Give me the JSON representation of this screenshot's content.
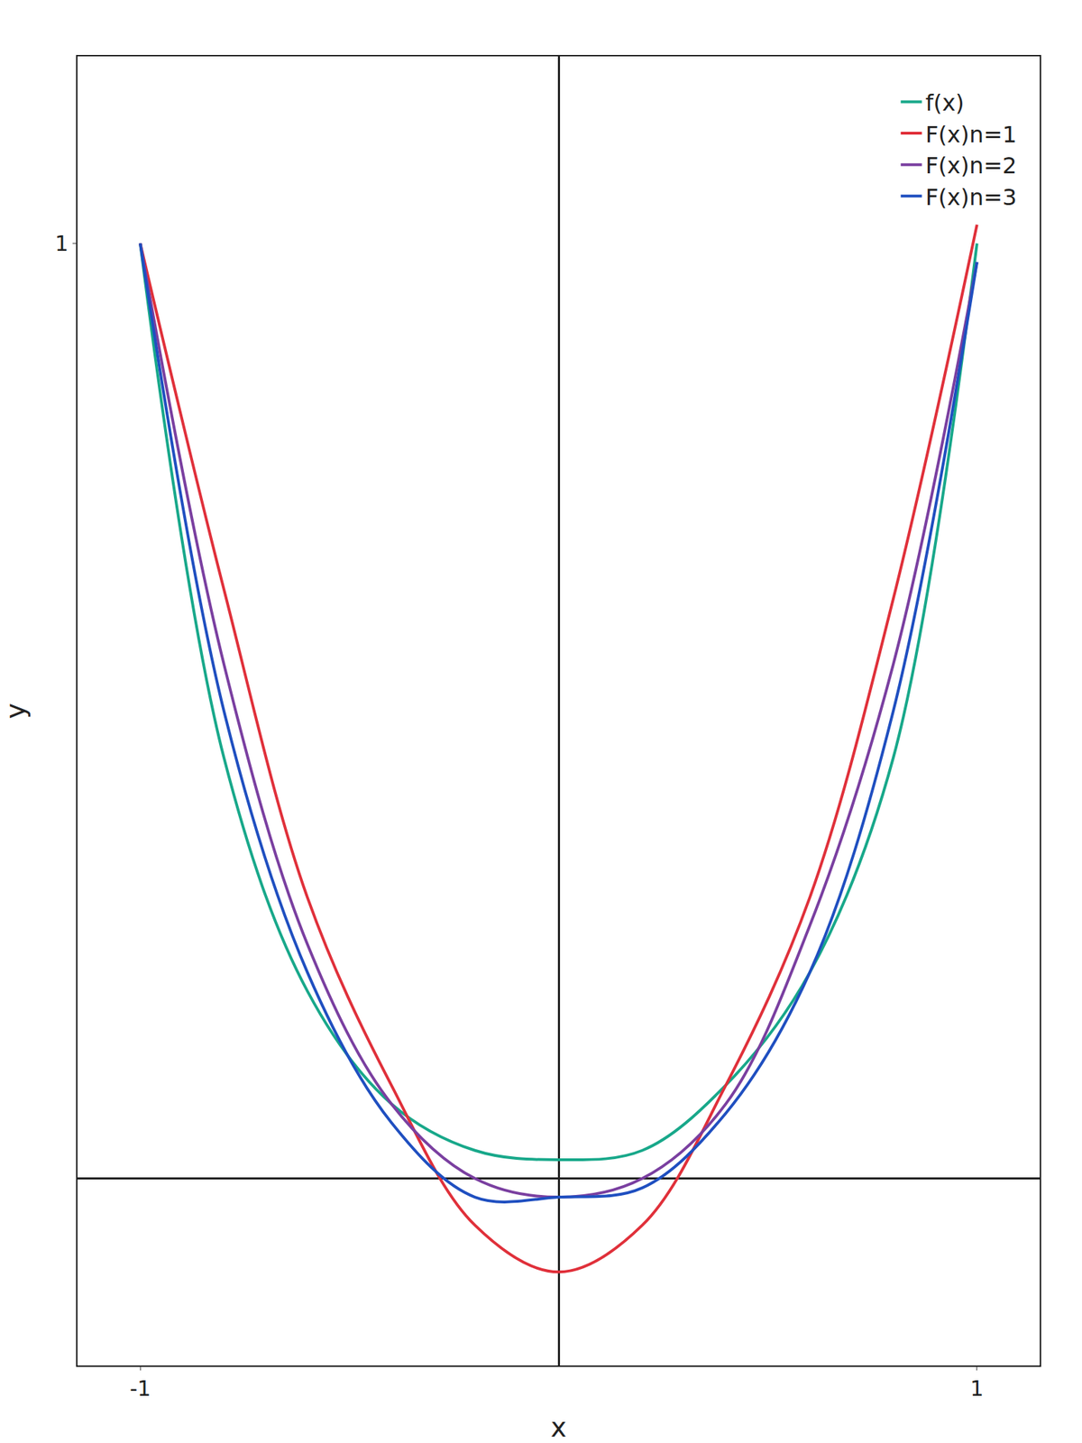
{
  "chart_data": {
    "type": "line",
    "x_label": "x",
    "y_label": "y",
    "x": [
      -1,
      -0.8,
      -0.6,
      -0.4,
      -0.2,
      0,
      0.2,
      0.4,
      0.6,
      0.8,
      1
    ],
    "series": [
      {
        "name": "f(x)",
        "color": "#18a88a",
        "values": [
          1,
          0.45,
          0.2,
          0.08,
          0.03,
          0.02,
          0.03,
          0.1,
          0.22,
          0.45,
          1
        ]
      },
      {
        "name": "F(x)n=1",
        "color": "#e0303a",
        "values": [
          1,
          0.63,
          0.3,
          0.1,
          -0.05,
          -0.1,
          -0.05,
          0.1,
          0.3,
          0.62,
          1.02
        ]
      },
      {
        "name": "F(x)n=2",
        "color": "#7a3fa0",
        "values": [
          1,
          0.55,
          0.25,
          0.08,
          0,
          -0.02,
          0,
          0.08,
          0.27,
          0.55,
          0.98
        ]
      },
      {
        "name": "F(x)n=3",
        "color": "#1f4fc0",
        "values": [
          1,
          0.5,
          0.22,
          0.06,
          -0.02,
          -0.02,
          -0.01,
          0.07,
          0.22,
          0.5,
          0.98
        ]
      }
    ],
    "xlim": [
      -1.15,
      1.15
    ],
    "xticks": [
      -1,
      1
    ],
    "ylim": [
      -0.2,
      1.2
    ],
    "yticks": [
      1
    ],
    "grid": false,
    "legend": "top right"
  }
}
